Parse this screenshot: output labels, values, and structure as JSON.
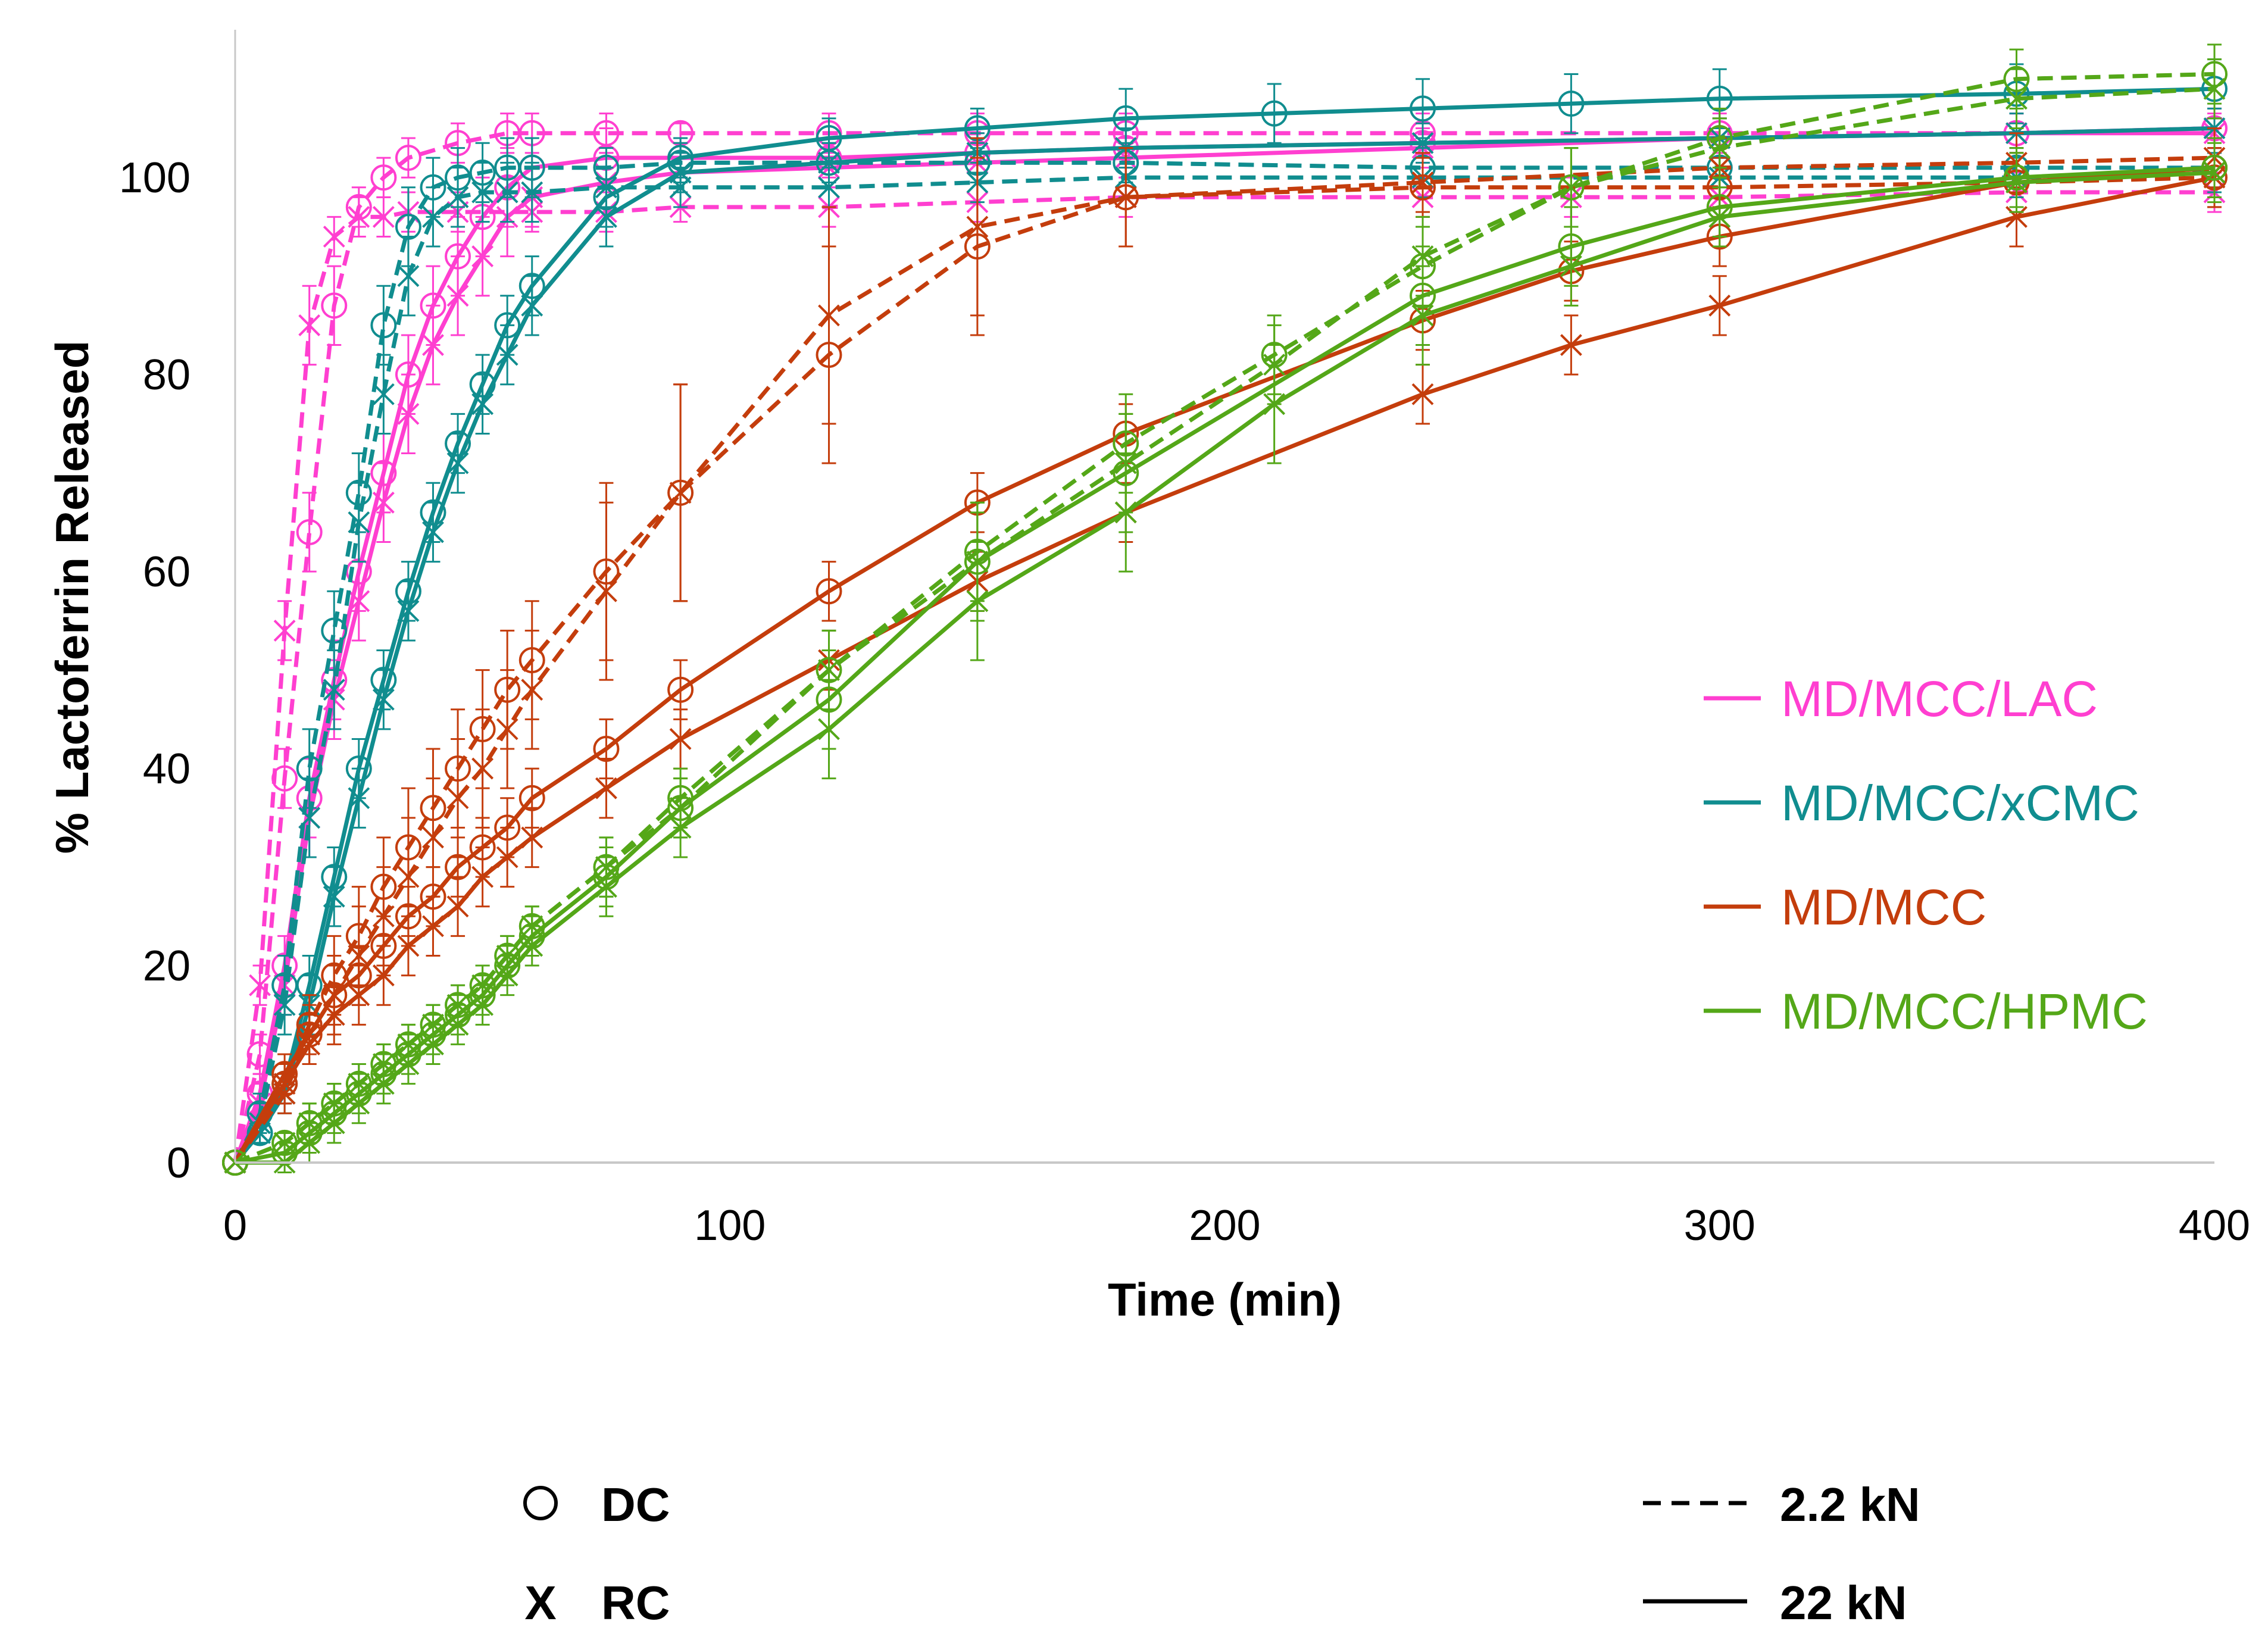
{
  "chart_data": {
    "type": "line",
    "title": "",
    "xlabel": "Time (min)",
    "ylabel": "% Lactoferrin Released",
    "xlim": [
      0,
      400
    ],
    "ylim": [
      0,
      115
    ],
    "xticks": [
      0,
      100,
      200,
      300,
      400
    ],
    "yticks": [
      0,
      20,
      40,
      60,
      80,
      100
    ],
    "grid": false,
    "legend": [
      {
        "label": "MD/MCC/LAC",
        "color": "#ff3fd0"
      },
      {
        "label": "MD/MCC/xCMC",
        "color": "#108d8f"
      },
      {
        "label": "MD/MCC",
        "color": "#c43d0c"
      },
      {
        "label": "MD/MCC/HPMC",
        "color": "#54a718"
      }
    ],
    "marker_key": [
      {
        "symbol": "O",
        "label": "DC"
      },
      {
        "symbol": "X",
        "label": "RC"
      }
    ],
    "line_key": [
      {
        "style": "dashed",
        "label": "2.2 kN"
      },
      {
        "style": "solid",
        "label": "22 kN"
      }
    ],
    "series": [
      {
        "name": "MD/MCC/LAC DC 2.2 kN",
        "color": "#ff3fd0",
        "marker": "circle",
        "line": "dashed",
        "x": [
          0,
          5,
          10,
          15,
          20,
          25,
          30,
          35,
          45,
          55,
          60,
          75,
          90,
          120,
          150,
          180,
          240,
          300,
          360,
          400
        ],
        "y": [
          0,
          11,
          39,
          64,
          87,
          97,
          100,
          102,
          103.5,
          104.5,
          104.5,
          104.5,
          104.5,
          104.5,
          104.5,
          104.5,
          104.5,
          104.5,
          104.5,
          105
        ],
        "err": [
          0,
          2,
          3,
          4,
          4,
          2,
          2,
          2,
          2,
          2,
          2,
          2,
          1,
          2,
          2,
          2,
          2,
          2,
          2,
          2
        ]
      },
      {
        "name": "MD/MCC/LAC RC 2.2 kN",
        "color": "#ff3fd0",
        "marker": "x",
        "line": "dashed",
        "x": [
          0,
          5,
          10,
          15,
          20,
          25,
          30,
          35,
          45,
          60,
          75,
          90,
          120,
          150,
          180,
          240,
          270,
          300,
          360,
          400
        ],
        "y": [
          0,
          18,
          54,
          85,
          94,
          96,
          96,
          96.5,
          96.5,
          96.5,
          96.5,
          97,
          97,
          97.5,
          98,
          98,
          98,
          98,
          98.5,
          98.5
        ],
        "err": [
          0,
          2,
          3,
          4,
          2,
          2,
          2,
          2,
          2,
          2,
          2,
          1.5,
          2,
          2,
          2,
          2,
          2,
          2,
          2,
          2
        ]
      },
      {
        "name": "MD/MCC/LAC DC 22 kN",
        "color": "#ff3fd0",
        "marker": "circle",
        "line": "solid",
        "x": [
          0,
          5,
          10,
          15,
          20,
          25,
          30,
          35,
          40,
          45,
          50,
          55,
          60,
          75,
          90,
          120,
          150,
          180,
          240,
          300,
          360,
          400
        ],
        "y": [
          0,
          7,
          20,
          37,
          49,
          60,
          70,
          80,
          87,
          92,
          96,
          99,
          101,
          102,
          102,
          102,
          102.5,
          103,
          103.5,
          104,
          104.5,
          105
        ],
        "err": [
          0,
          2,
          3,
          4,
          4,
          4,
          4,
          4,
          4,
          4,
          4,
          4,
          3,
          3,
          2,
          2,
          2,
          2,
          2,
          2,
          2,
          2
        ]
      },
      {
        "name": "MD/MCC/LAC RC 22 kN",
        "color": "#ff3fd0",
        "marker": "x",
        "line": "solid",
        "x": [
          0,
          5,
          10,
          15,
          20,
          25,
          30,
          35,
          40,
          45,
          50,
          55,
          60,
          75,
          90,
          120,
          150,
          180,
          240,
          300,
          360,
          400
        ],
        "y": [
          0,
          6,
          18,
          35,
          47,
          57,
          67,
          76,
          83,
          88,
          92,
          96,
          98,
          99.5,
          100.5,
          101,
          101.5,
          102,
          103,
          104,
          104.5,
          104.5
        ],
        "err": [
          0,
          2,
          3,
          4,
          4,
          4,
          4,
          4,
          4,
          4,
          4,
          4,
          3,
          3,
          2,
          2,
          2,
          2,
          2,
          2,
          2,
          2
        ]
      },
      {
        "name": "MD/MCC/xCMC DC 2.2 kN",
        "color": "#108d8f",
        "marker": "circle",
        "line": "dashed",
        "x": [
          0,
          5,
          10,
          15,
          20,
          25,
          30,
          35,
          40,
          45,
          50,
          55,
          60,
          75,
          90,
          120,
          150,
          180,
          240,
          300,
          360,
          400
        ],
        "y": [
          0,
          5,
          18,
          40,
          54,
          68,
          85,
          95,
          99,
          100,
          100.5,
          101,
          101,
          101,
          101.5,
          101.5,
          101.5,
          101.5,
          101,
          101,
          101,
          101
        ],
        "err": [
          0,
          2,
          3,
          4,
          4,
          4,
          4,
          4,
          3,
          3,
          3,
          3,
          3,
          2,
          2,
          2,
          2,
          2,
          2,
          2,
          2,
          2
        ]
      },
      {
        "name": "MD/MCC/xCMC RC 2.2 kN",
        "color": "#108d8f",
        "marker": "x",
        "line": "dashed",
        "x": [
          0,
          5,
          10,
          15,
          20,
          25,
          30,
          35,
          40,
          45,
          50,
          55,
          60,
          75,
          90,
          120,
          150,
          180,
          240,
          300,
          360,
          400
        ],
        "y": [
          0,
          4,
          16,
          35,
          48,
          65,
          78,
          90,
          96,
          98,
          98.5,
          98.5,
          98.5,
          99,
          99,
          99,
          99.5,
          100,
          100,
          100,
          100,
          100.5
        ],
        "err": [
          0,
          2,
          3,
          4,
          4,
          4,
          4,
          4,
          3,
          3,
          3,
          3,
          3,
          2,
          2,
          2,
          2,
          2,
          2,
          2,
          2,
          2
        ]
      },
      {
        "name": "MD/MCC/xCMC DC 22 kN",
        "color": "#108d8f",
        "marker": "circle",
        "line": "solid",
        "x": [
          0,
          5,
          10,
          15,
          20,
          25,
          30,
          35,
          40,
          45,
          50,
          55,
          60,
          75,
          90,
          120,
          150,
          180,
          210,
          240,
          270,
          300,
          360,
          400
        ],
        "y": [
          0,
          3,
          8,
          18,
          29,
          40,
          49,
          58,
          66,
          73,
          79,
          85,
          89,
          98,
          102,
          104,
          105,
          106,
          106.5,
          107,
          107.5,
          108,
          108.5,
          109
        ],
        "err": [
          0,
          1,
          2,
          3,
          3,
          3,
          3,
          3,
          3,
          3,
          3,
          3,
          3,
          3,
          2,
          2,
          2,
          3,
          3,
          3,
          3,
          3,
          3,
          3
        ]
      },
      {
        "name": "MD/MCC/xCMC RC 22 kN",
        "color": "#108d8f",
        "marker": "x",
        "line": "solid",
        "x": [
          0,
          5,
          10,
          15,
          20,
          25,
          30,
          35,
          40,
          45,
          50,
          55,
          60,
          75,
          90,
          120,
          150,
          180,
          240,
          300,
          360,
          400
        ],
        "y": [
          0,
          3,
          7,
          16,
          27,
          37,
          47,
          56,
          64,
          71,
          77,
          82,
          87,
          96,
          100.5,
          101.5,
          102.5,
          103,
          103.5,
          104,
          104.5,
          105
        ],
        "err": [
          0,
          1,
          2,
          3,
          3,
          3,
          3,
          3,
          3,
          3,
          3,
          3,
          3,
          3,
          2,
          2,
          2,
          2,
          2,
          2,
          2,
          2
        ]
      },
      {
        "name": "MD/MCC DC 2.2 kN",
        "color": "#c43d0c",
        "marker": "circle",
        "line": "dashed",
        "x": [
          0,
          10,
          15,
          20,
          25,
          30,
          35,
          40,
          45,
          50,
          55,
          60,
          75,
          90,
          120,
          150,
          180,
          240,
          300,
          360,
          400
        ],
        "y": [
          0,
          8,
          14,
          19,
          23,
          28,
          32,
          36,
          40,
          44,
          48,
          51,
          60,
          68,
          82,
          93,
          98,
          99,
          99,
          99.5,
          100
        ],
        "err": [
          0,
          2,
          3,
          4,
          5,
          5,
          6,
          6,
          6,
          6,
          6,
          6,
          9,
          11,
          11,
          9,
          5,
          3,
          3,
          3,
          3
        ]
      },
      {
        "name": "MD/MCC RC 2.2 kN",
        "color": "#c43d0c",
        "marker": "x",
        "line": "dashed",
        "x": [
          0,
          10,
          15,
          20,
          25,
          30,
          35,
          40,
          45,
          50,
          55,
          60,
          75,
          90,
          120,
          150,
          180,
          240,
          300,
          360,
          400
        ],
        "y": [
          0,
          7,
          13,
          17,
          21,
          25,
          29,
          33,
          37,
          40,
          44,
          48,
          58,
          68,
          86,
          95,
          98,
          99.5,
          101,
          101.5,
          102
        ],
        "err": [
          0,
          2,
          3,
          4,
          5,
          5,
          6,
          6,
          6,
          6,
          6,
          6,
          9,
          11,
          11,
          9,
          5,
          3,
          3,
          3,
          3
        ]
      },
      {
        "name": "MD/MCC DC 22 kN",
        "color": "#c43d0c",
        "marker": "circle",
        "line": "solid",
        "x": [
          0,
          10,
          15,
          20,
          25,
          30,
          35,
          40,
          45,
          50,
          55,
          60,
          75,
          90,
          120,
          150,
          180,
          240,
          270,
          300,
          360,
          400
        ],
        "y": [
          0,
          9,
          13,
          17,
          19,
          22,
          25,
          27,
          30,
          32,
          34,
          37,
          42,
          48,
          58,
          67,
          74,
          85.5,
          90.5,
          94,
          99.5,
          101
        ],
        "err": [
          0,
          2,
          2,
          3,
          3,
          3,
          3,
          3,
          3,
          3,
          3,
          3,
          3,
          3,
          3,
          3,
          3,
          3,
          3,
          3,
          3,
          3
        ]
      },
      {
        "name": "MD/MCC RC 22 kN",
        "color": "#c43d0c",
        "marker": "x",
        "line": "solid",
        "x": [
          0,
          10,
          15,
          20,
          25,
          30,
          35,
          40,
          45,
          50,
          55,
          60,
          75,
          90,
          120,
          150,
          180,
          240,
          270,
          300,
          360,
          400
        ],
        "y": [
          0,
          8,
          12,
          15,
          17,
          19,
          22,
          24,
          26,
          29,
          31,
          33,
          38,
          43,
          51,
          59,
          66,
          78,
          83,
          87,
          96,
          100
        ],
        "err": [
          0,
          2,
          2,
          3,
          3,
          3,
          3,
          3,
          3,
          3,
          3,
          3,
          3,
          3,
          3,
          3,
          3,
          3,
          3,
          3,
          3,
          3
        ]
      },
      {
        "name": "MD/MCC/HPMC DC 2.2 kN",
        "color": "#54a718",
        "marker": "circle",
        "line": "dashed",
        "x": [
          0,
          10,
          15,
          20,
          25,
          30,
          35,
          40,
          45,
          50,
          55,
          60,
          75,
          90,
          120,
          150,
          180,
          210,
          240,
          270,
          300,
          360,
          400
        ],
        "y": [
          0,
          2,
          4,
          6,
          8,
          10,
          12,
          14,
          16,
          18,
          21,
          24,
          30,
          37,
          50,
          62,
          73,
          82,
          91,
          99,
          104,
          110,
          110.5
        ],
        "err": [
          0,
          1,
          2,
          2,
          2,
          2,
          2,
          2,
          2,
          2,
          2,
          2,
          3,
          3,
          4,
          5,
          5,
          4,
          4,
          4,
          3,
          3,
          3
        ]
      },
      {
        "name": "MD/MCC/HPMC RC 2.2 kN",
        "color": "#54a718",
        "marker": "x",
        "line": "dashed",
        "x": [
          0,
          10,
          15,
          20,
          25,
          30,
          35,
          40,
          45,
          50,
          55,
          60,
          75,
          90,
          120,
          150,
          180,
          210,
          240,
          270,
          300,
          360,
          400
        ],
        "y": [
          0,
          2,
          4,
          6,
          8,
          10,
          12,
          14,
          16,
          18,
          21,
          24,
          30,
          36,
          50,
          61,
          71,
          81,
          92,
          99,
          103,
          108,
          109
        ],
        "err": [
          0,
          1,
          2,
          2,
          2,
          2,
          2,
          2,
          2,
          2,
          2,
          2,
          3,
          3,
          4,
          5,
          5,
          4,
          4,
          4,
          3,
          3,
          3
        ]
      },
      {
        "name": "MD/MCC/HPMC DC 22 kN",
        "color": "#54a718",
        "marker": "circle",
        "line": "solid",
        "x": [
          0,
          10,
          15,
          20,
          25,
          30,
          35,
          40,
          45,
          50,
          55,
          60,
          75,
          90,
          120,
          150,
          180,
          240,
          270,
          300,
          360,
          400
        ],
        "y": [
          0,
          1,
          3,
          5,
          7,
          9,
          11,
          13,
          15,
          17,
          20,
          23,
          29,
          36,
          47,
          61,
          70,
          88,
          93,
          97,
          100,
          101
        ],
        "err": [
          0,
          1,
          2,
          2,
          2,
          2,
          2,
          2,
          2,
          2,
          2,
          2,
          3,
          3,
          5,
          6,
          6,
          5,
          4,
          3,
          3,
          3
        ]
      },
      {
        "name": "MD/MCC/HPMC RC 22 kN",
        "color": "#54a718",
        "marker": "x",
        "line": "solid",
        "x": [
          0,
          10,
          15,
          20,
          25,
          30,
          35,
          40,
          45,
          50,
          55,
          60,
          75,
          90,
          120,
          150,
          180,
          210,
          240,
          270,
          300,
          360,
          400
        ],
        "y": [
          0,
          0,
          2,
          4,
          6,
          8,
          10,
          12,
          14,
          16,
          19,
          22,
          28,
          34,
          44,
          57,
          66,
          77,
          86,
          91,
          96,
          99.5,
          100.5
        ],
        "err": [
          0,
          1,
          2,
          2,
          2,
          2,
          2,
          2,
          2,
          2,
          2,
          2,
          3,
          3,
          5,
          6,
          6,
          6,
          5,
          4,
          3,
          3,
          3
        ]
      }
    ]
  }
}
